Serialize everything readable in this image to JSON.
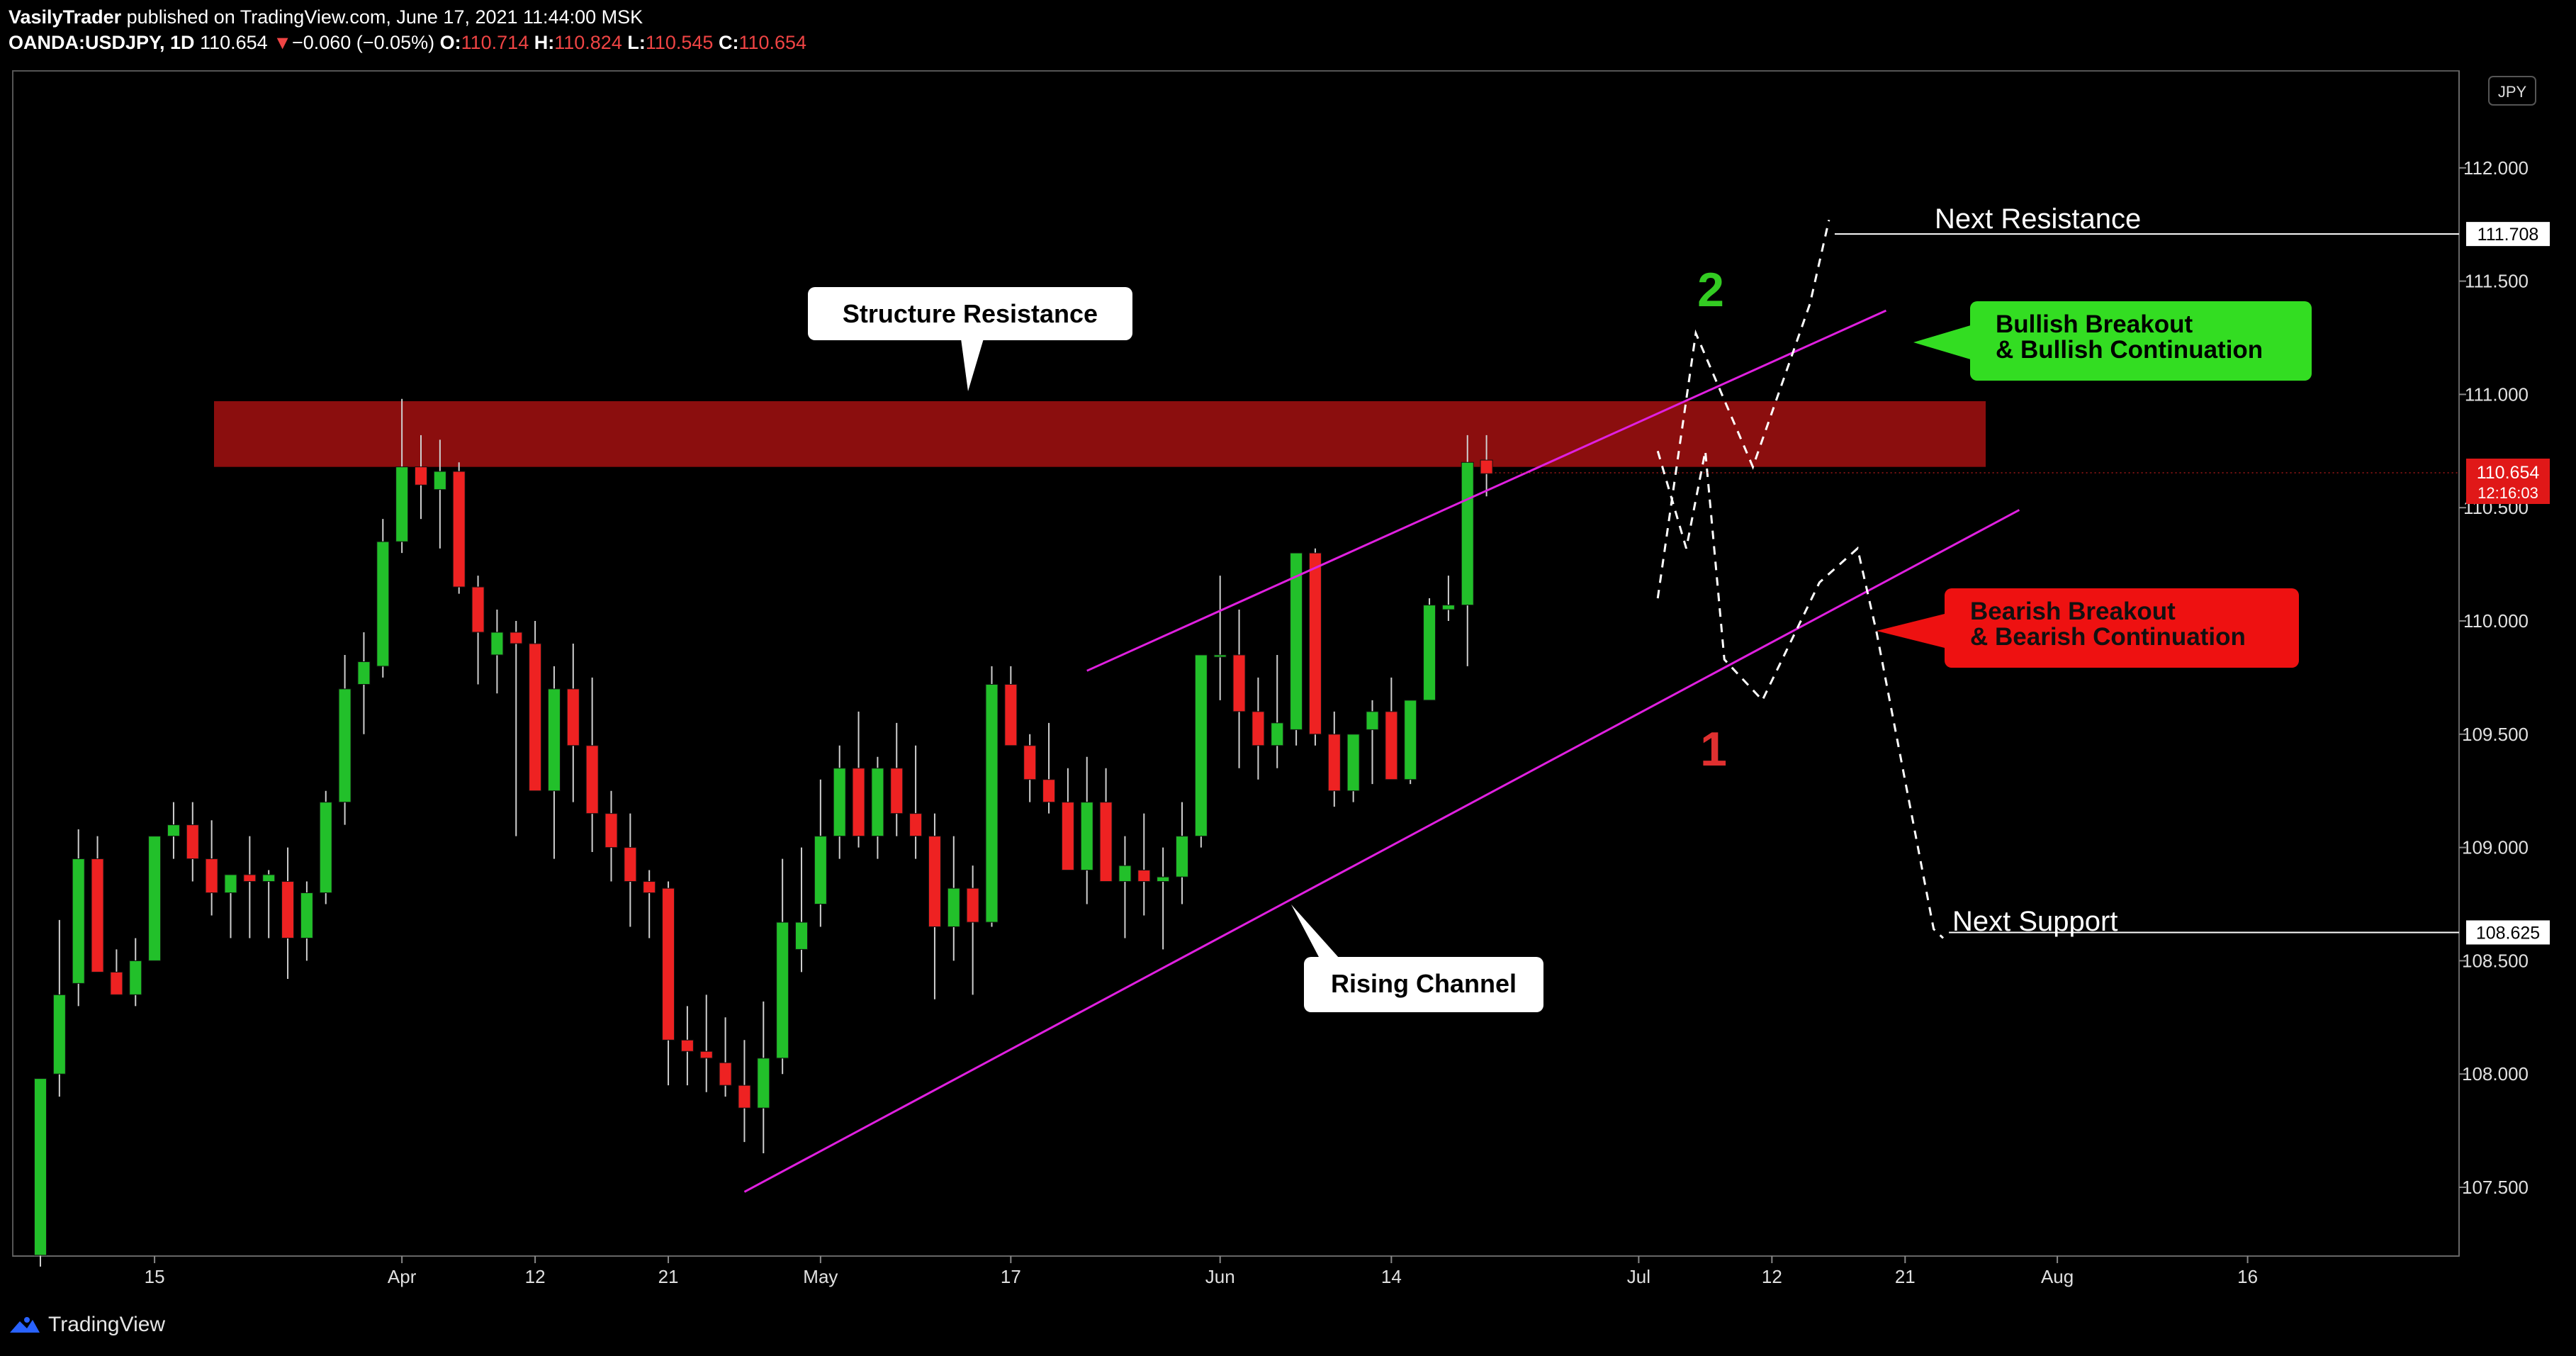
{
  "header": {
    "publisher": "VasilyTrader",
    "published_text": "published on TradingView.com, June 17, 2021 11:44:00 MSK",
    "symbol": "OANDA:USDJPY, 1D",
    "last": "110.654",
    "change_arrow": "▼",
    "change": "−0.060 (−0.05%)",
    "o_label": "O:",
    "o": "110.714",
    "h_label": "H:",
    "h": "110.824",
    "l_label": "L:",
    "l": "110.545",
    "c_label": "C:",
    "c": "110.654"
  },
  "footer": {
    "brand": "TradingView",
    "logo_icon": "tradingview-logo-icon"
  },
  "colors": {
    "up": "#22c02a",
    "down": "#ee2222",
    "zone": "#8b0e0e",
    "channel": "#e020e0",
    "bull": "#33dd22",
    "bear": "#ee1111",
    "axis": "#ffffff"
  },
  "chart_data": {
    "type": "candlestick",
    "currency": "JPY",
    "ylim": [
      107.2,
      112.5
    ],
    "y_ticks": [
      "112.000",
      "111.500",
      "111.000",
      "110.500",
      "110.000",
      "109.500",
      "109.000",
      "108.500",
      "108.000",
      "107.500"
    ],
    "y_tick_values": [
      112.0,
      111.5,
      111.0,
      110.5,
      110.0,
      109.5,
      109.0,
      108.5,
      108.0,
      107.5
    ],
    "x_ticks": [
      {
        "label": "15",
        "i": 6
      },
      {
        "label": "Apr",
        "i": 19
      },
      {
        "label": "12",
        "i": 26
      },
      {
        "label": "21",
        "i": 33
      },
      {
        "label": "May",
        "i": 41
      },
      {
        "label": "17",
        "i": 51
      },
      {
        "label": "Jun",
        "i": 62
      },
      {
        "label": "14",
        "i": 71
      },
      {
        "label": "Jul",
        "i": 84
      },
      {
        "label": "12",
        "i": 91
      },
      {
        "label": "21",
        "i": 98
      },
      {
        "label": "Aug",
        "i": 106
      },
      {
        "label": "16",
        "i": 116
      }
    ],
    "candles": [
      [
        107.2,
        107.98,
        107.15,
        107.98
      ],
      [
        108.0,
        108.68,
        107.9,
        108.35
      ],
      [
        108.4,
        109.08,
        108.3,
        108.95
      ],
      [
        108.95,
        109.05,
        108.5,
        108.45
      ],
      [
        108.45,
        108.55,
        108.35,
        108.35
      ],
      [
        108.35,
        108.6,
        108.3,
        108.5
      ],
      [
        108.5,
        109.05,
        108.5,
        109.05
      ],
      [
        109.05,
        109.2,
        108.95,
        109.1
      ],
      [
        109.1,
        109.2,
        108.85,
        108.95
      ],
      [
        108.95,
        109.12,
        108.7,
        108.8
      ],
      [
        108.8,
        108.88,
        108.6,
        108.88
      ],
      [
        108.88,
        109.05,
        108.6,
        108.85
      ],
      [
        108.85,
        108.9,
        108.6,
        108.88
      ],
      [
        108.85,
        109.0,
        108.42,
        108.6
      ],
      [
        108.6,
        108.85,
        108.5,
        108.8
      ],
      [
        108.8,
        109.25,
        108.75,
        109.2
      ],
      [
        109.2,
        109.85,
        109.1,
        109.7
      ],
      [
        109.72,
        109.95,
        109.5,
        109.82
      ],
      [
        109.8,
        110.45,
        109.75,
        110.35
      ],
      [
        110.35,
        110.98,
        110.3,
        110.68
      ],
      [
        110.68,
        110.82,
        110.45,
        110.6
      ],
      [
        110.58,
        110.8,
        110.32,
        110.66
      ],
      [
        110.66,
        110.7,
        110.12,
        110.15
      ],
      [
        110.15,
        110.2,
        109.72,
        109.95
      ],
      [
        109.85,
        110.05,
        109.68,
        109.95
      ],
      [
        109.95,
        110.0,
        109.05,
        109.9
      ],
      [
        109.9,
        110.0,
        109.3,
        109.25
      ],
      [
        109.25,
        109.8,
        108.95,
        109.7
      ],
      [
        109.7,
        109.9,
        109.2,
        109.45
      ],
      [
        109.45,
        109.75,
        108.98,
        109.15
      ],
      [
        109.15,
        109.25,
        108.85,
        109.0
      ],
      [
        109.0,
        109.15,
        108.65,
        108.85
      ],
      [
        108.85,
        108.9,
        108.6,
        108.8
      ],
      [
        108.82,
        108.85,
        107.95,
        108.15
      ],
      [
        108.15,
        108.3,
        107.95,
        108.1
      ],
      [
        108.1,
        108.35,
        107.92,
        108.07
      ],
      [
        108.05,
        108.25,
        107.9,
        107.95
      ],
      [
        107.95,
        108.15,
        107.7,
        107.85
      ],
      [
        107.85,
        108.32,
        107.65,
        108.07
      ],
      [
        108.07,
        108.95,
        108.0,
        108.67
      ],
      [
        108.55,
        109.0,
        108.45,
        108.67
      ],
      [
        108.75,
        109.3,
        108.65,
        109.05
      ],
      [
        109.05,
        109.45,
        108.95,
        109.35
      ],
      [
        109.35,
        109.6,
        109.0,
        109.05
      ],
      [
        109.05,
        109.4,
        108.95,
        109.35
      ],
      [
        109.35,
        109.55,
        109.05,
        109.15
      ],
      [
        109.15,
        109.45,
        108.95,
        109.05
      ],
      [
        109.05,
        109.15,
        108.33,
        108.65
      ],
      [
        108.65,
        109.05,
        108.5,
        108.82
      ],
      [
        108.82,
        108.92,
        108.35,
        108.67
      ],
      [
        108.67,
        109.8,
        108.65,
        109.72
      ],
      [
        109.72,
        109.8,
        109.45,
        109.45
      ],
      [
        109.45,
        109.5,
        109.2,
        109.3
      ],
      [
        109.3,
        109.55,
        109.15,
        109.2
      ],
      [
        109.2,
        109.35,
        108.9,
        108.9
      ],
      [
        108.9,
        109.4,
        108.75,
        109.2
      ],
      [
        109.2,
        109.35,
        108.85,
        108.85
      ],
      [
        108.85,
        109.05,
        108.6,
        108.92
      ],
      [
        108.9,
        109.15,
        108.7,
        108.85
      ],
      [
        108.85,
        109.0,
        108.55,
        108.87
      ],
      [
        108.87,
        109.2,
        108.75,
        109.05
      ],
      [
        109.05,
        109.85,
        109.0,
        109.85
      ],
      [
        109.85,
        110.2,
        109.65,
        109.85
      ],
      [
        109.85,
        110.05,
        109.35,
        109.6
      ],
      [
        109.6,
        109.75,
        109.3,
        109.45
      ],
      [
        109.45,
        109.85,
        109.35,
        109.55
      ],
      [
        109.52,
        110.3,
        109.45,
        110.3
      ],
      [
        110.3,
        110.32,
        109.45,
        109.5
      ],
      [
        109.5,
        109.6,
        109.18,
        109.25
      ],
      [
        109.25,
        109.5,
        109.2,
        109.5
      ],
      [
        109.52,
        109.65,
        109.28,
        109.6
      ],
      [
        109.6,
        109.75,
        109.3,
        109.3
      ],
      [
        109.3,
        109.65,
        109.28,
        109.65
      ],
      [
        109.65,
        110.1,
        109.65,
        110.07
      ],
      [
        110.05,
        110.2,
        110.0,
        110.07
      ],
      [
        110.07,
        110.82,
        109.8,
        110.7
      ],
      [
        110.71,
        110.82,
        110.55,
        110.65
      ]
    ],
    "annotations": {
      "structure_resistance": "Structure Resistance",
      "rising_channel": "Rising Channel",
      "bullish": [
        "Bullish Breakout",
        "& Bullish Continuation"
      ],
      "bearish": [
        "Bearish Breakout",
        "& Bearish Continuation"
      ],
      "next_resistance": "Next Resistance",
      "next_support": "Next Support",
      "scenario_1": "1",
      "scenario_2": "2"
    },
    "resistance_zone": [
      110.68,
      110.97
    ],
    "channel_upper": [
      [
        55,
        109.78
      ],
      [
        97,
        111.37
      ]
    ],
    "channel_lower": [
      [
        37,
        107.48
      ],
      [
        104,
        110.49
      ]
    ],
    "next_resistance_level": 111.708,
    "next_support_level": 108.625,
    "price_label": "110.654",
    "countdown": "12:16:03",
    "scenario_bear_path": [
      [
        85,
        110.75
      ],
      [
        86.5,
        110.32
      ],
      [
        87.5,
        110.75
      ],
      [
        88.5,
        109.83
      ],
      [
        90.5,
        109.65
      ],
      [
        93.5,
        110.17
      ],
      [
        95.5,
        110.32
      ],
      [
        96.5,
        109.95
      ],
      [
        99.5,
        108.64
      ],
      [
        100,
        108.6
      ]
    ],
    "scenario_bull_path": [
      [
        85,
        110.1
      ],
      [
        87,
        111.27
      ],
      [
        90,
        110.68
      ],
      [
        93,
        111.4
      ],
      [
        94,
        111.77
      ]
    ]
  }
}
